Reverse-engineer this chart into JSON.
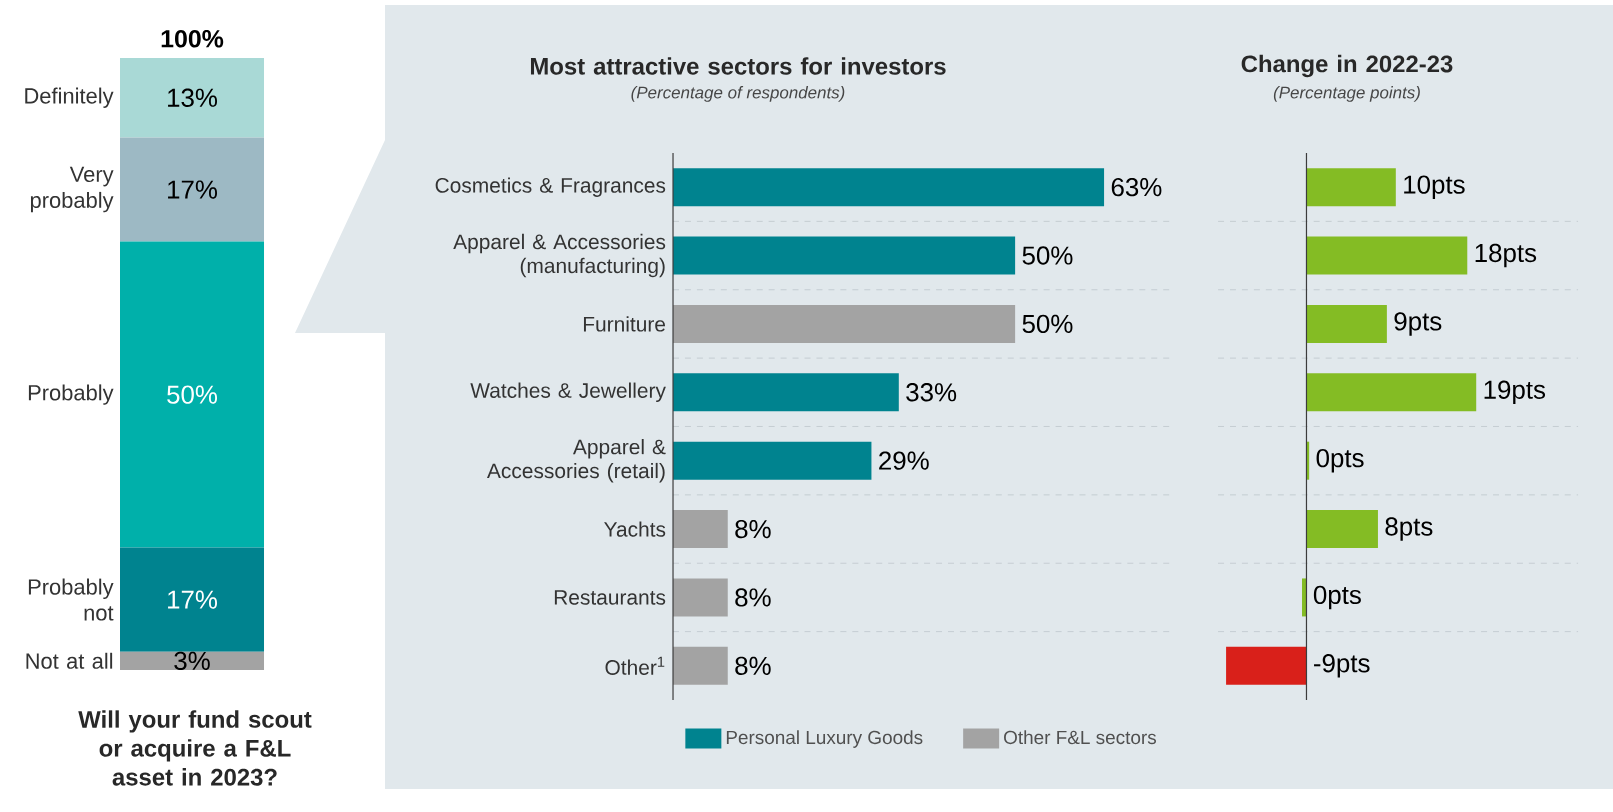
{
  "chart_data": [
    {
      "type": "bar",
      "stacked": true,
      "categories": [
        null
      ],
      "title": "Will your fund scout or acquire a F&L asset in 2023?",
      "totals": [
        "100%"
      ],
      "series": [
        {
          "name": "Not at all",
          "color": "#a3a3a3",
          "values": [
            3
          ],
          "value_labels": [
            "3%"
          ]
        },
        {
          "name": "Probably not",
          "color": "#00838f",
          "values": [
            17
          ],
          "value_labels": [
            "17%"
          ]
        },
        {
          "name": "Probably",
          "color": "#00b0aa",
          "values": [
            50
          ],
          "value_labels": [
            "50%"
          ]
        },
        {
          "name": "Very probably",
          "color": "#9db9c4",
          "values": [
            17
          ],
          "value_labels": [
            "17%"
          ]
        },
        {
          "name": "Definitely",
          "color": "#a9d9d6",
          "values": [
            13
          ],
          "value_labels": [
            "13%"
          ]
        }
      ]
    },
    {
      "type": "bar",
      "orientation": "horizontal",
      "title": "Most attractive sectors for investors",
      "subtitle": "(Percentage of respondents)",
      "tick_labels": "y",
      "grid": "y",
      "legend": "bottom",
      "categories": [
        "Cosmetics & Fragrances",
        "Apparel & Accessories (manufacturing)",
        "Furniture",
        "Watches & Jewellery",
        "Apparel & Accessories (retail)",
        "Yachts",
        "Restaurants",
        "Other$^{1}$"
      ],
      "series": [
        {
          "name": "Personal Luxury Goods",
          "color": "#00838f",
          "values": [
            63,
            50,
            null,
            33,
            29,
            null,
            null,
            null
          ],
          "value_labels": [
            "63%",
            "50%",
            null,
            "33%",
            "29%",
            null,
            null,
            null
          ]
        },
        {
          "name": "Other F&L sectors",
          "color": "#a3a3a3",
          "values": [
            null,
            null,
            50,
            null,
            null,
            8,
            8,
            8
          ],
          "value_labels": [
            null,
            null,
            "50%",
            null,
            null,
            "8%",
            "8%",
            "8%"
          ]
        }
      ]
    },
    {
      "type": "bar",
      "orientation": "horizontal",
      "title": "Change in 2022-23",
      "subtitle": "(Percentage points)",
      "grid": "y",
      "categories": [
        null,
        null,
        null,
        null,
        null,
        null,
        null,
        null
      ],
      "values": [
        10,
        18,
        9,
        19,
        0.3,
        8,
        -0.5,
        -9
      ],
      "colors": [
        "#84bc24",
        "#84bc24",
        "#84bc24",
        "#84bc24",
        "#84bc24",
        "#84bc24",
        "#84bc24",
        "#d9201a"
      ],
      "value_labels": [
        "10pts",
        "18pts",
        "9pts",
        "19pts",
        "0pts",
        "8pts",
        "0pts",
        "-9pts"
      ]
    }
  ]
}
